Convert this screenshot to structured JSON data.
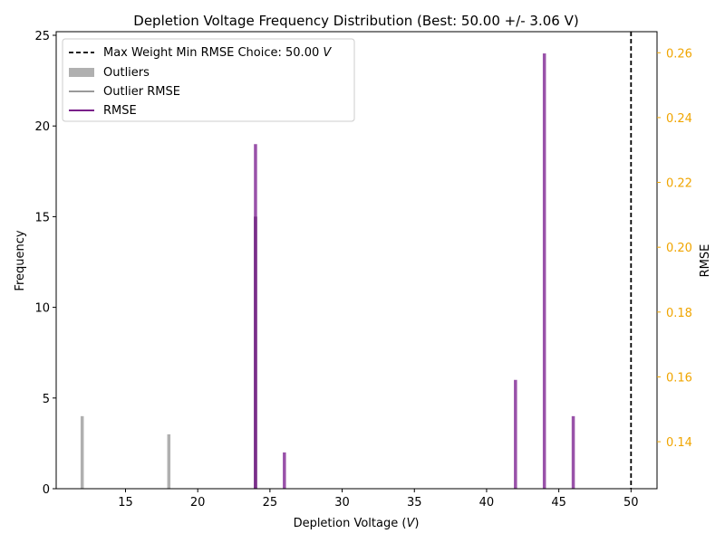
{
  "chart_data": {
    "type": "bar",
    "title": "Depletion Voltage Frequency Distribution (Best: 50.00 +/- 3.06 V)",
    "xlabel": "Depletion Voltage (",
    "xlabel_unit": "V",
    "xlabel_close": ")",
    "ylabel": "Frequency",
    "ylabel_right": "RMSE",
    "xlim": [
      10.2,
      51.8
    ],
    "ylim": [
      0,
      25.2
    ],
    "ylim_right": [
      0.1255,
      0.2665
    ],
    "xticks": [
      15,
      20,
      25,
      30,
      35,
      40,
      45,
      50
    ],
    "yticks": [
      0,
      5,
      10,
      15,
      20,
      25
    ],
    "yticks_right": [
      0.14,
      0.16,
      0.18,
      0.2,
      0.22,
      0.24,
      0.26
    ],
    "yticks_right_labels": [
      "0.14",
      "0.16",
      "0.18",
      "0.20",
      "0.22",
      "0.24",
      "0.26"
    ],
    "colors": {
      "outlier": "#b0b0b0",
      "rmse": "#8e3fa0",
      "rmse_overlap": "#7a2f8a",
      "right_axis": "#f0a500",
      "best_line": "#000000"
    },
    "outliers": [
      {
        "x": 12,
        "frequency": 4
      },
      {
        "x": 18,
        "frequency": 3
      },
      {
        "x": 24,
        "frequency": 15
      }
    ],
    "series": [
      {
        "x": 24,
        "frequency": 19
      },
      {
        "x": 26,
        "frequency": 2
      },
      {
        "x": 42,
        "frequency": 6
      },
      {
        "x": 44,
        "frequency": 24
      },
      {
        "x": 46,
        "frequency": 4
      }
    ],
    "best_x": 50,
    "legend": {
      "placement": "top-left",
      "best_label": "Max Weight Min RMSE Choice: 50.00 ",
      "best_unit": "V",
      "outliers_label": "Outliers",
      "outlier_rmse_label": "Outlier RMSE",
      "rmse_label": "RMSE"
    }
  }
}
